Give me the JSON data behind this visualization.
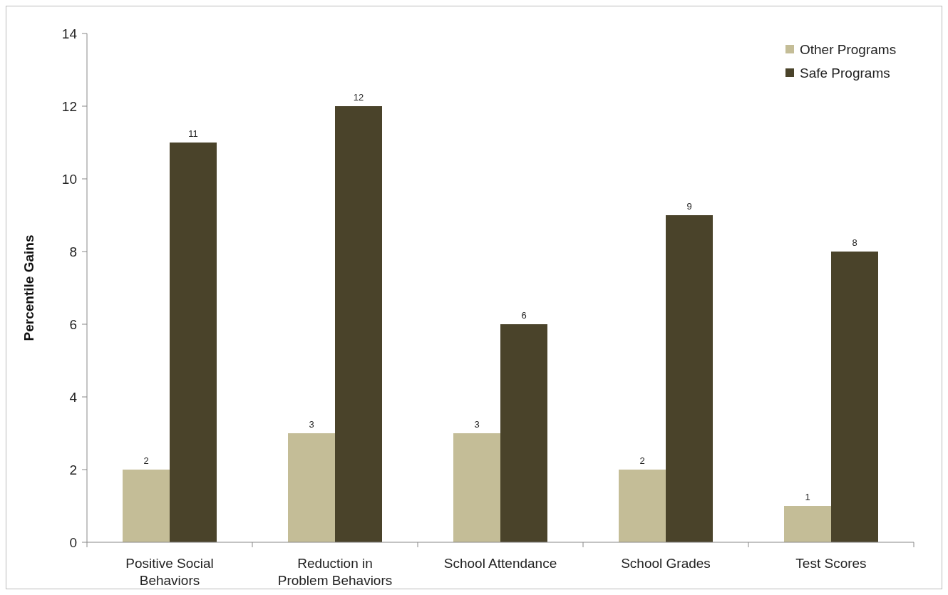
{
  "chart_data": {
    "type": "bar",
    "ylabel": "Percentile Gains",
    "categories": [
      "Positive Social Behaviors",
      "Reduction in Problem Behaviors",
      "School Attendance",
      "School Grades",
      "Test Scores"
    ],
    "series": [
      {
        "name": "Other Programs",
        "color": "#c4bd97",
        "values": [
          2,
          3,
          3,
          2,
          1
        ]
      },
      {
        "name": "Safe Programs",
        "color": "#4a432a",
        "values": [
          11,
          12,
          6,
          9,
          8
        ]
      }
    ],
    "ylim": [
      0,
      14
    ],
    "yticks": [
      0,
      2,
      4,
      6,
      8,
      10,
      12,
      14
    ],
    "data_labels": true,
    "legend": "top right",
    "grid": false
  }
}
